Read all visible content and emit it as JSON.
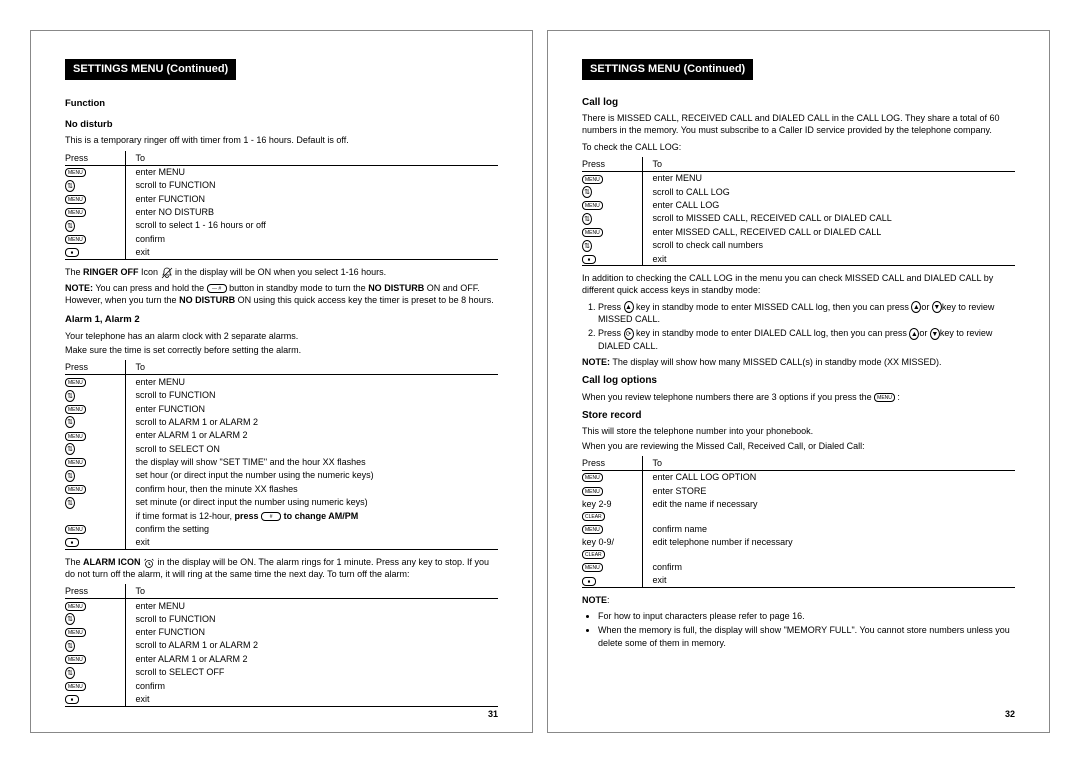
{
  "page_left_num": "31",
  "page_right_num": "32",
  "header_left": "SETTINGS MENU (Continued)",
  "header_right": "SETTINGS MENU (Continued)",
  "icons": {
    "menu_key": "MENU",
    "up": "▲",
    "down": "▼",
    "stop": "⏹",
    "ringer_off": "🔕",
    "alarm": "⏰",
    "hash": "⧉ #"
  },
  "colors": {
    "bg": "#ffffff",
    "text": "#000000",
    "bar_bg": "#000000",
    "bar_fg": "#ffffff",
    "border": "#888888"
  },
  "left": {
    "function_h": "Function",
    "no_disturb_h": "No disturb",
    "no_disturb_p": "This is a temporary ringer off with timer from 1 - 16 hours. Default is off.",
    "tbl_header_press": "Press",
    "tbl_header_to": "To",
    "nd_rows": [
      [
        "menu",
        "enter MENU"
      ],
      [
        "arrow",
        "scroll to FUNCTION"
      ],
      [
        "menu",
        "enter FUNCTION"
      ],
      [
        "menu",
        "enter NO DISTURB"
      ],
      [
        "arrow",
        "scroll to select 1 - 16 hours or off"
      ],
      [
        "menu",
        "confirm"
      ],
      [
        "stop",
        "exit"
      ]
    ],
    "ringer_line_a": "The ",
    "ringer_bold": "RINGER OFF",
    "ringer_line_b": " Icon ",
    "ringer_line_c": " in the display will be ON when you select 1-16 hours.",
    "note1_a": "NOTE:",
    "note1_b": " You can press and hold the ",
    "note1_c": " button in standby mode to turn the ",
    "note1_bold2": "NO DISTURB",
    "note1_d": " ON and OFF. However, when you turn the ",
    "note1_bold3": "NO DISTURB",
    "note1_e": " ON using this quick access key the timer is preset to be 8 hours.",
    "alarm_h": "Alarm 1, Alarm 2",
    "alarm_p1": "Your telephone has an alarm clock with 2 separate alarms.",
    "alarm_p2": "Make sure the time is set correctly before setting the alarm.",
    "alarm_rows": [
      [
        "menu",
        "enter MENU"
      ],
      [
        "arrow",
        "scroll to FUNCTION"
      ],
      [
        "menu",
        "enter FUNCTION"
      ],
      [
        "arrow",
        "scroll to ALARM 1 or ALARM 2"
      ],
      [
        "menu",
        "enter ALARM 1 or ALARM 2"
      ],
      [
        "arrow",
        "scroll to SELECT ON"
      ],
      [
        "menu",
        "the display will show \"SET TIME\" and the hour XX flashes"
      ],
      [
        "arrow",
        "set hour (or direct input the number using the numeric keys)"
      ],
      [
        "menu",
        "confirm hour, then the minute XX flashes"
      ],
      [
        "arrow",
        "set minute (or direct input the number using numeric keys)"
      ],
      [
        "blank",
        "if time format is 12-hour, <b>press</b>  <span class='keybtn'>#</span>  <b>to change AM/PM</b>"
      ],
      [
        "menu",
        "confirm the setting"
      ],
      [
        "stop",
        "exit"
      ]
    ],
    "alarm_icon_line_a": "The ",
    "alarm_icon_bold": "ALARM ICON",
    "alarm_icon_line_b": " in the display will be ON. The alarm rings for 1 minute. Press any key to stop. If you do not turn off the alarm, it will ring at the same time the next day. To turn off the alarm:",
    "off_rows": [
      [
        "menu",
        "enter MENU"
      ],
      [
        "arrow",
        "scroll to FUNCTION"
      ],
      [
        "menu",
        "enter FUNCTION"
      ],
      [
        "arrow",
        "scroll to ALARM 1 or ALARM 2"
      ],
      [
        "menu",
        "enter ALARM 1 or ALARM 2"
      ],
      [
        "arrow",
        "scroll to SELECT OFF"
      ],
      [
        "menu",
        "confirm"
      ],
      [
        "stop",
        "exit"
      ]
    ]
  },
  "right": {
    "call_log_h": "Call log",
    "call_log_p": "There is MISSED CALL, RECEIVED CALL and DIALED CALL in the CALL LOG. They share a total of 60 numbers in the memory. You must subscribe to a Caller ID service provided by the telephone company.",
    "check_p": "To check the CALL LOG:",
    "tbl_header_press": "Press",
    "tbl_header_to": "To",
    "cl_rows": [
      [
        "menu",
        "enter MENU"
      ],
      [
        "arrow",
        "scroll to CALL LOG"
      ],
      [
        "menu",
        "enter CALL LOG"
      ],
      [
        "arrow",
        "scroll to MISSED CALL, RECEIVED CALL or DIALED CALL"
      ],
      [
        "menu",
        "enter MISSED CALL, RECEIVED CALL or DIALED CALL"
      ],
      [
        "arrow",
        "scroll to check call numbers"
      ],
      [
        "stop",
        "exit"
      ]
    ],
    "addl_p": "In addition to checking the CALL LOG in the menu you can check MISSED CALL and DIALED CALL by different quick access keys in standby mode:",
    "ol1_a": "Press ",
    "ol1_b": " key in standby mode to enter MISSED CALL log, then you can press ",
    "ol1_c": "or ",
    "ol1_d": "key to review MISSED CALL.",
    "ol2_a": "Press ",
    "ol2_b": " key in standby mode to enter DIALED CALL log, then you can press ",
    "ol2_c": "or ",
    "ol2_d": "key to review DIALED CALL.",
    "note2_a": "NOTE:",
    "note2_b": " The display will show how many MISSED CALL(s) in standby mode (XX MISSED).",
    "clo_h": "Call log options",
    "clo_p": "When you review telephone numbers there are 3 options if you press the ",
    "store_h": "Store record",
    "store_p1": "This will store the telephone number into your phonebook.",
    "store_p2": "When you are reviewing the Missed Call, Received Call, or Dialed Call:",
    "store_rows": [
      [
        "menu",
        "enter CALL LOG OPTION"
      ],
      [
        "menu",
        "enter STORE"
      ],
      [
        "key29",
        "edit the name if necessary"
      ],
      [
        "menu",
        "confirm name"
      ],
      [
        "key09",
        "edit telephone number if necessary"
      ],
      [
        "menu",
        "confirm"
      ],
      [
        "stop",
        "exit"
      ]
    ],
    "note3_h": "NOTE",
    "bullets": [
      "For how to input characters please refer to page 16.",
      "When the memory is full, the display will show \"MEMORY FULL\". You cannot store numbers unless you delete some of them in memory."
    ]
  }
}
